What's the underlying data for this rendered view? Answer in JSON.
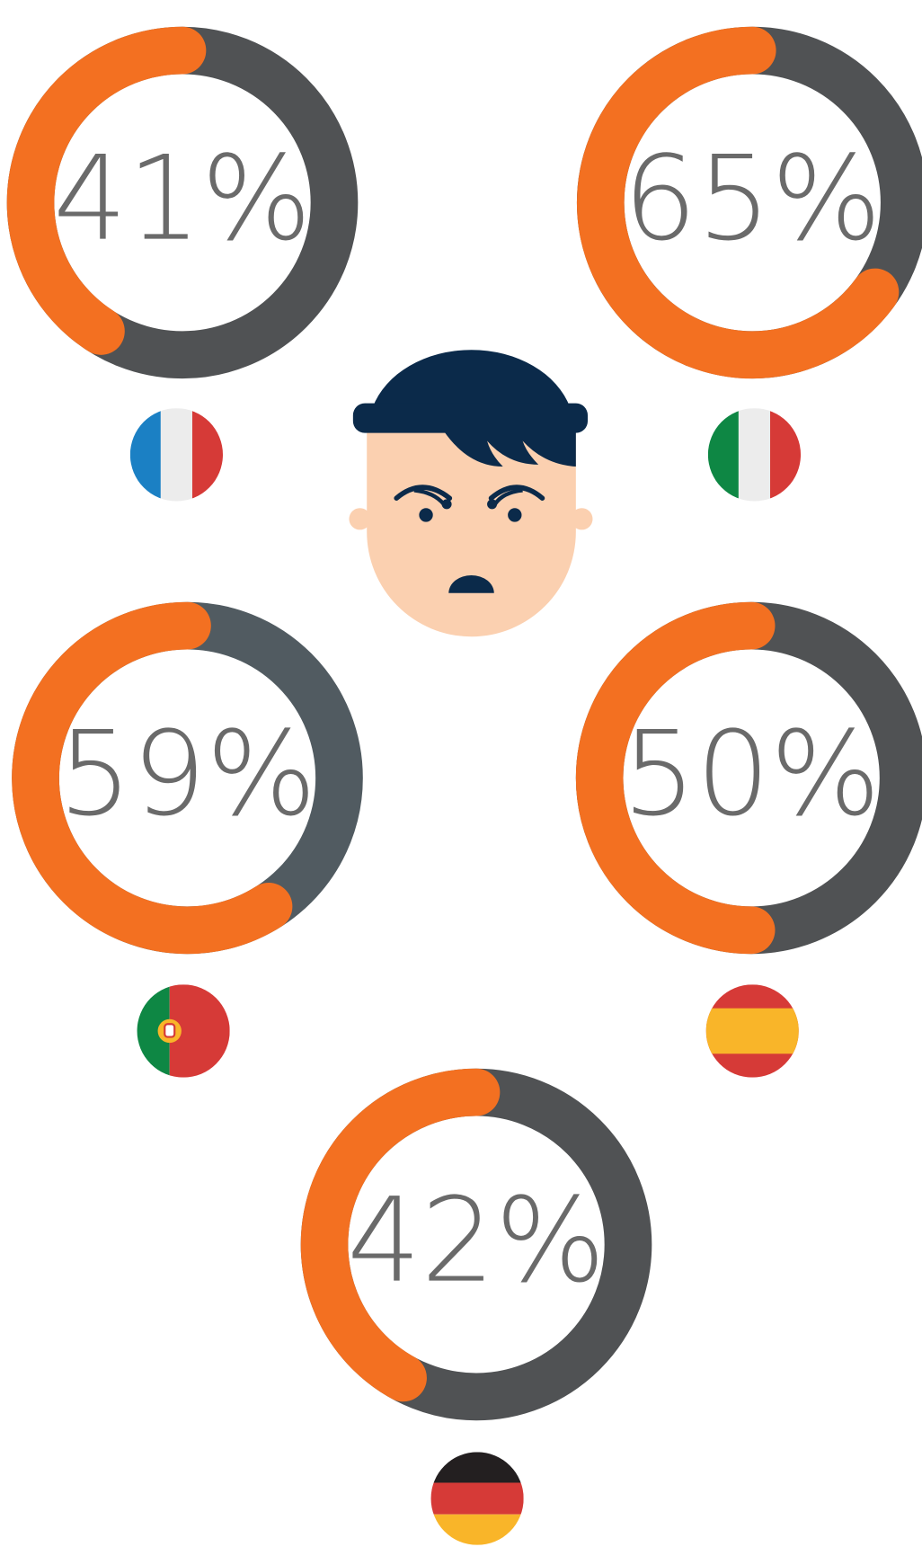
{
  "chart_data": [
    {
      "type": "donut",
      "values": [
        41
      ],
      "value_labels": [
        "41%"
      ],
      "color": "#f37021",
      "track_color": "#505254"
    },
    {
      "type": "donut",
      "values": [
        65
      ],
      "value_labels": [
        "65%"
      ],
      "color": "#f37021",
      "track_color": "#505254"
    },
    {
      "type": "donut",
      "values": [
        59
      ],
      "value_labels": [
        "59%"
      ],
      "color": "#f37021",
      "track_color": "#515b61"
    },
    {
      "type": "donut",
      "values": [
        50
      ],
      "value_labels": [
        "50%"
      ],
      "color": "#f37021",
      "track_color": "#505254"
    },
    {
      "type": "donut",
      "values": [
        42
      ],
      "value_labels": [
        "42%"
      ],
      "color": "#f37021",
      "track_color": "#505254"
    }
  ]
}
